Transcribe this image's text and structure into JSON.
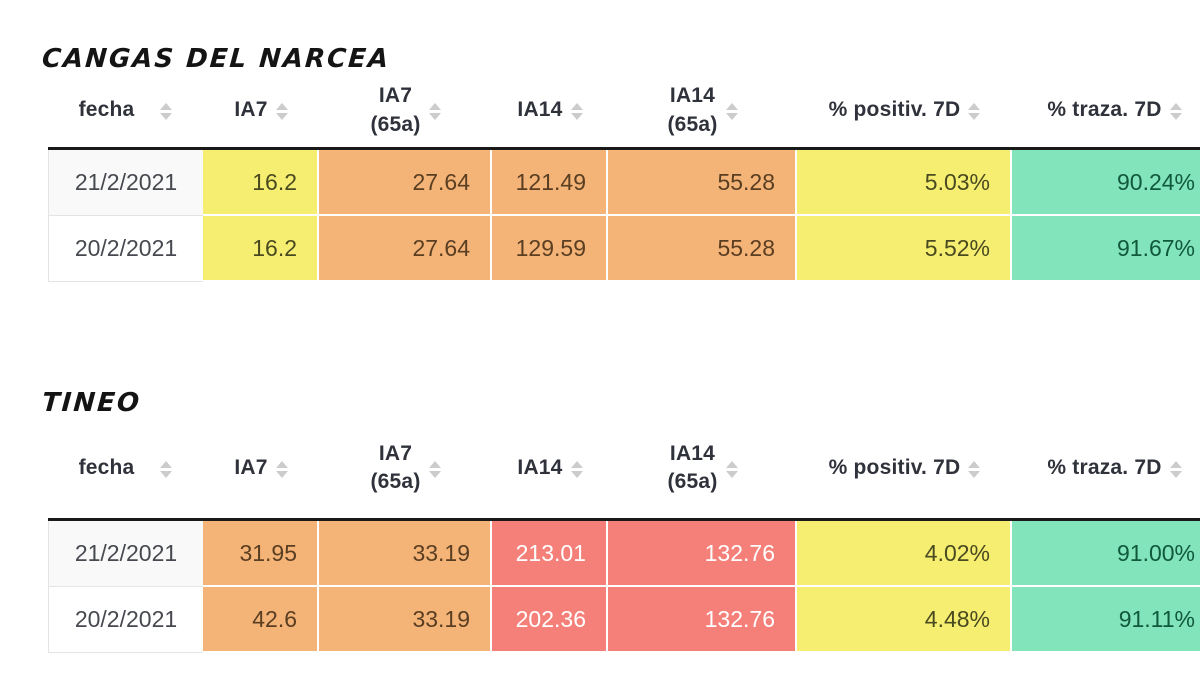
{
  "colors": {
    "yellow": "#f6ee71",
    "orange": "#f4b377",
    "red": "#f5807a",
    "green": "#82e4ba",
    "header_text": "#2f323a",
    "date_text": "#46494f",
    "yellow_text": "#4a4a20",
    "orange_text": "#5a3e22",
    "red_text": "#ffffff",
    "green_text": "#11593b",
    "sort_icon": "#cccccc",
    "header_border": "#191919"
  },
  "columns": [
    {
      "label": "fecha"
    },
    {
      "label": "IA7"
    },
    {
      "label": "IA7\n(65a)"
    },
    {
      "label": "IA14"
    },
    {
      "label": "IA14\n(65a)"
    },
    {
      "label": "% positiv. 7D"
    },
    {
      "label": "% traza. 7D"
    }
  ],
  "tables": [
    {
      "title": "CANGAS DEL NARCEA",
      "rows": [
        {
          "fecha": "21/2/2021",
          "values": [
            "16.2",
            "27.64",
            "121.49",
            "55.28",
            "5.03%",
            "90.24%"
          ]
        },
        {
          "fecha": "20/2/2021",
          "values": [
            "16.2",
            "27.64",
            "129.59",
            "55.28",
            "5.52%",
            "91.67%"
          ]
        }
      ]
    },
    {
      "title": "TINEO",
      "rows": [
        {
          "fecha": "21/2/2021",
          "values": [
            "31.95",
            "33.19",
            "213.01",
            "132.76",
            "4.02%",
            "91.00%"
          ]
        },
        {
          "fecha": "20/2/2021",
          "values": [
            "42.6",
            "33.19",
            "202.36",
            "132.76",
            "4.48%",
            "91.11%"
          ]
        }
      ]
    }
  ]
}
